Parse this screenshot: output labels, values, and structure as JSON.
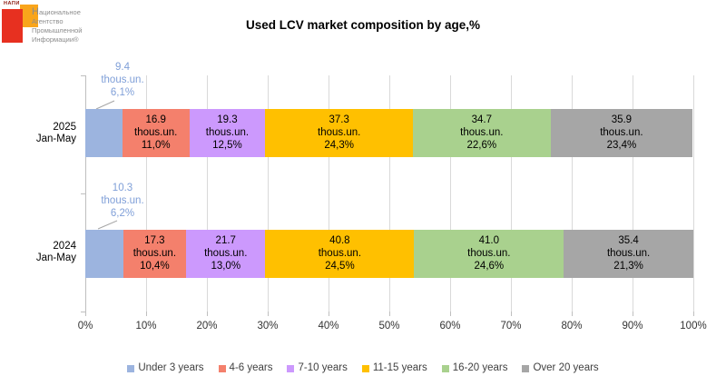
{
  "logo": {
    "brand": "НАПИ",
    "lines": [
      "Национальное",
      "Агентство",
      "Промышленной",
      "Информации®"
    ],
    "red_color": "#E73020",
    "orange_color": "#F9A51B"
  },
  "title": "Used LCV market composition by age,%",
  "chart_data": {
    "type": "bar",
    "stacked": true,
    "orientation": "horizontal",
    "title": "Used LCV market composition by age,%",
    "unit": "thous.un.",
    "categories": [
      "2025 Jan-May",
      "2024 Jan-May"
    ],
    "series": [
      {
        "name": "Under 3 years",
        "color": "#9CB4DF",
        "thous_un": [
          9.4,
          10.3
        ],
        "pct": [
          6.1,
          6.2
        ]
      },
      {
        "name": "4-6 years",
        "color": "#F4806C",
        "thous_un": [
          16.9,
          17.3
        ],
        "pct": [
          11.0,
          10.4
        ]
      },
      {
        "name": "7-10 years",
        "color": "#CC99FD",
        "thous_un": [
          19.3,
          21.7
        ],
        "pct": [
          12.5,
          13.0
        ]
      },
      {
        "name": "11-15 years",
        "color": "#FFC000",
        "thous_un": [
          37.3,
          40.8
        ],
        "pct": [
          24.3,
          24.5
        ]
      },
      {
        "name": "16-20 years",
        "color": "#A9D18E",
        "thous_un": [
          34.7,
          41.0
        ],
        "pct": [
          22.6,
          24.6
        ]
      },
      {
        "name": "Over 20 years",
        "color": "#A6A6A6",
        "thous_un": [
          35.9,
          35.4
        ],
        "pct": [
          23.4,
          21.3
        ]
      }
    ],
    "x_ticks": [
      "0%",
      "10%",
      "20%",
      "30%",
      "40%",
      "50%",
      "60%",
      "70%",
      "80%",
      "90%",
      "100%"
    ],
    "xlim": [
      0,
      100
    ],
    "grid": "vertical-gridlines",
    "legend_position": "bottom"
  },
  "rows": [
    {
      "axis_line1": "2025",
      "axis_line2": "Jan-May",
      "callout": {
        "value": "9.4",
        "unit": "thous.un.",
        "pct": "6,1%"
      },
      "segments": [
        {
          "value": "",
          "unit": "",
          "pct": ""
        },
        {
          "value": "16.9",
          "unit": "thous.un.",
          "pct": "11,0%"
        },
        {
          "value": "19.3",
          "unit": "thous.un.",
          "pct": "12,5%"
        },
        {
          "value": "37.3",
          "unit": "thous.un.",
          "pct": "24,3%"
        },
        {
          "value": "34.7",
          "unit": "thous.un.",
          "pct": "22,6%"
        },
        {
          "value": "35.9",
          "unit": "thous.un.",
          "pct": "23,4%"
        }
      ]
    },
    {
      "axis_line1": "2024",
      "axis_line2": "Jan-May",
      "callout": {
        "value": "10.3",
        "unit": "thous.un.",
        "pct": "6,2%"
      },
      "segments": [
        {
          "value": "",
          "unit": "",
          "pct": ""
        },
        {
          "value": "17.3",
          "unit": "thous.un.",
          "pct": "10,4%"
        },
        {
          "value": "21.7",
          "unit": "thous.un.",
          "pct": "13,0%"
        },
        {
          "value": "40.8",
          "unit": "thous.un.",
          "pct": "24,5%"
        },
        {
          "value": "41.0",
          "unit": "thous.un.",
          "pct": "24,6%"
        },
        {
          "value": "35.4",
          "unit": "thous.un.",
          "pct": "21,3%"
        }
      ]
    }
  ],
  "colors": {
    "gridline": "#D9D9D9",
    "axis": "#BFBFBF",
    "callout_text": "#7F9FD8",
    "bar_text": "#000000",
    "legend_text": "#404040"
  }
}
